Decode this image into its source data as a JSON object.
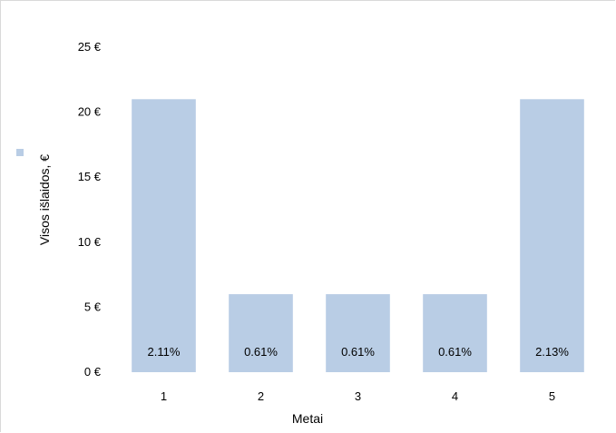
{
  "chart_data": {
    "type": "bar",
    "categories": [
      "1",
      "2",
      "3",
      "4",
      "5"
    ],
    "series": [
      {
        "values": [
          21,
          6,
          6,
          6,
          21
        ],
        "data_labels": [
          "2.11%",
          "0.61%",
          "0.61%",
          "0.61%",
          "2.13%"
        ],
        "color": "#b9cde5"
      }
    ],
    "xlabel": "Metai",
    "ylabel": "Visos išlaidos, €",
    "ylim": [
      0,
      25
    ],
    "yticks": [
      0,
      5,
      10,
      15,
      20,
      25
    ],
    "ytick_labels": [
      "0 €",
      "5 €",
      "10 €",
      "15 €",
      "20 €",
      "25 €"
    ],
    "grid": false,
    "legend": "left"
  }
}
